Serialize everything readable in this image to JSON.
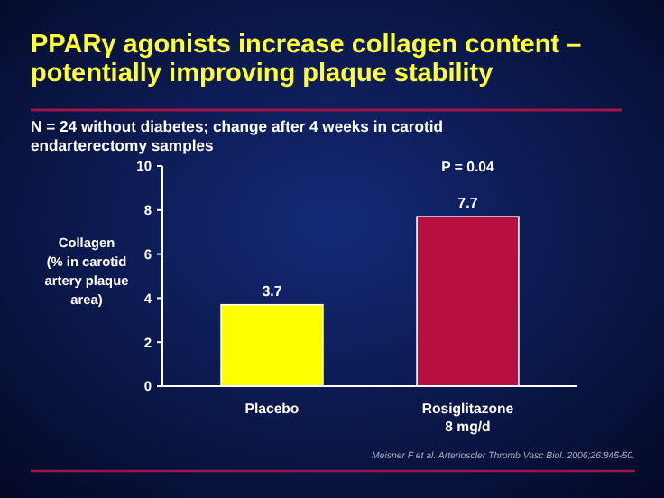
{
  "chart_data": {
    "type": "bar",
    "title": "PPARγ agonists increase collagen content –\npotentially improving plaque stability",
    "subtitle": "N = 24 without diabetes; change after 4 weeks in carotid\nendarterectomy samples",
    "ylabel": "Collagen\n(% in carotid\nartery plaque\narea)",
    "categories": [
      "Placebo",
      "Rosiglitazone\n8 mg/d"
    ],
    "values": [
      3.7,
      7.7
    ],
    "colors": [
      "#ffff00",
      "#b8103e"
    ],
    "ylim": [
      0,
      10
    ],
    "yticks": [
      0,
      2,
      4,
      6,
      8,
      10
    ],
    "data_labels": true,
    "grid": false,
    "annotations": [
      "P = 0.04",
      "Meisner F et al. Arterioscler Thromb Vasc Biol. 2006;26:845-50."
    ]
  }
}
